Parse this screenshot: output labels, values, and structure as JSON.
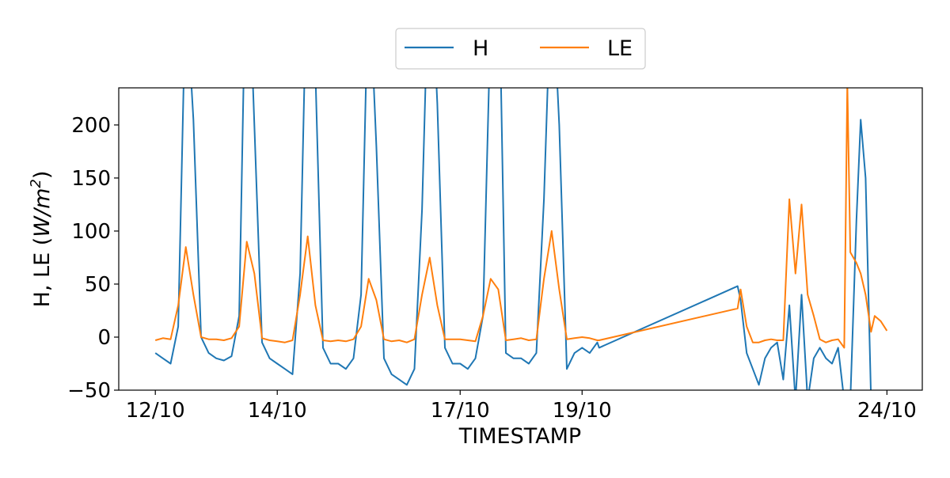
{
  "chart_data": {
    "type": "line",
    "title": "",
    "xlabel": "TIMESTAMP",
    "ylabel_main": "H, LE (",
    "ylabel_unit": "W/m",
    "ylabel_sup": "2",
    "ylabel_close": ")",
    "xlim": [
      11.4,
      24.58
    ],
    "ylim": [
      -50,
      235
    ],
    "x_ticks": [
      {
        "value": 12,
        "label": "12/10"
      },
      {
        "value": 14,
        "label": "14/10"
      },
      {
        "value": 17,
        "label": "17/10"
      },
      {
        "value": 19,
        "label": "19/10"
      },
      {
        "value": 24,
        "label": "24/10"
      }
    ],
    "y_ticks": [
      {
        "value": -50,
        "label": "−50"
      },
      {
        "value": 0,
        "label": "0"
      },
      {
        "value": 50,
        "label": "50"
      },
      {
        "value": 100,
        "label": "100"
      },
      {
        "value": 150,
        "label": "150"
      },
      {
        "value": 200,
        "label": "200"
      }
    ],
    "grid": false,
    "legend_position": "top-center",
    "x_units": "day of October",
    "series": [
      {
        "name": "H",
        "color": "#1f77b4",
        "x": [
          12,
          12.125,
          12.25,
          12.375,
          12.5,
          12.625,
          12.75,
          12.875,
          13,
          13.125,
          13.25,
          13.375,
          13.5,
          13.625,
          13.75,
          13.875,
          14,
          14.125,
          14.25,
          14.375,
          14.5,
          14.625,
          14.75,
          14.875,
          15,
          15.125,
          15.25,
          15.375,
          15.5,
          15.625,
          15.75,
          15.875,
          16,
          16.125,
          16.25,
          16.375,
          16.5,
          16.625,
          16.75,
          16.875,
          17,
          17.125,
          17.25,
          17.375,
          17.5,
          17.625,
          17.75,
          17.875,
          18,
          18.125,
          18.25,
          18.375,
          18.5,
          18.625,
          18.75,
          18.875,
          19,
          19.125,
          19.25,
          19.28,
          21.55,
          21.6,
          21.7,
          21.8,
          21.9,
          22.0,
          22.1,
          22.2,
          22.3,
          22.4,
          22.5,
          22.6,
          22.7,
          22.8,
          22.9,
          23.0,
          23.1,
          23.2,
          23.3,
          23.35,
          23.4,
          23.5,
          23.57,
          23.65,
          23.74
        ],
        "values": [
          -15,
          -20,
          -25,
          10,
          330,
          205,
          0,
          -15,
          -20,
          -22,
          -18,
          20,
          400,
          200,
          -5,
          -20,
          -25,
          -30,
          -35,
          60,
          380,
          250,
          -10,
          -25,
          -25,
          -30,
          -20,
          40,
          350,
          180,
          -20,
          -35,
          -40,
          -45,
          -30,
          120,
          380,
          220,
          -10,
          -25,
          -25,
          -30,
          -20,
          20,
          300,
          380,
          -15,
          -20,
          -20,
          -25,
          -15,
          130,
          350,
          200,
          -30,
          -15,
          -10,
          -15,
          -5,
          -10,
          48,
          35,
          -15,
          -30,
          -45,
          -20,
          -10,
          -5,
          -40,
          30,
          -60,
          40,
          -60,
          -20,
          -10,
          -20,
          -25,
          -10,
          -60,
          -60,
          -60,
          110,
          205,
          150,
          -60
        ]
      },
      {
        "name": "LE",
        "color": "#ff7f0e",
        "x": [
          12,
          12.125,
          12.25,
          12.375,
          12.5,
          12.625,
          12.75,
          12.875,
          13,
          13.125,
          13.25,
          13.375,
          13.5,
          13.625,
          13.75,
          13.875,
          14,
          14.125,
          14.25,
          14.375,
          14.5,
          14.625,
          14.75,
          14.875,
          15,
          15.125,
          15.25,
          15.375,
          15.5,
          15.625,
          15.75,
          15.875,
          16,
          16.125,
          16.25,
          16.375,
          16.5,
          16.625,
          16.75,
          16.875,
          17,
          17.125,
          17.25,
          17.375,
          17.5,
          17.625,
          17.75,
          17.875,
          18,
          18.125,
          18.25,
          18.375,
          18.5,
          18.625,
          18.75,
          18.875,
          19,
          19.125,
          19.25,
          19.28,
          21.55,
          21.6,
          21.7,
          21.8,
          21.9,
          22.0,
          22.1,
          22.2,
          22.3,
          22.4,
          22.5,
          22.6,
          22.7,
          22.8,
          22.9,
          23.0,
          23.1,
          23.2,
          23.3,
          23.35,
          23.4,
          23.5,
          23.57,
          23.65,
          23.74,
          23.8,
          23.9,
          24.0
        ],
        "values": [
          -3,
          -1,
          -2,
          30,
          85,
          40,
          0,
          -2,
          -2,
          -3,
          -1,
          10,
          90,
          60,
          -1,
          -3,
          -4,
          -5,
          -3,
          40,
          95,
          30,
          -3,
          -4,
          -3,
          -4,
          -2,
          10,
          55,
          35,
          -2,
          -4,
          -3,
          -5,
          -2,
          40,
          75,
          30,
          -2,
          -2,
          -2,
          -3,
          -4,
          20,
          55,
          45,
          -3,
          -2,
          -1,
          -3,
          -2,
          55,
          100,
          45,
          -2,
          -1,
          0,
          -1,
          -3,
          -3,
          27,
          45,
          10,
          -5,
          -5,
          -3,
          -2,
          -3,
          -3,
          130,
          60,
          125,
          40,
          20,
          -2,
          -5,
          -3,
          -2,
          -10,
          240,
          80,
          70,
          60,
          40,
          5,
          20,
          15,
          6
        ]
      }
    ]
  }
}
